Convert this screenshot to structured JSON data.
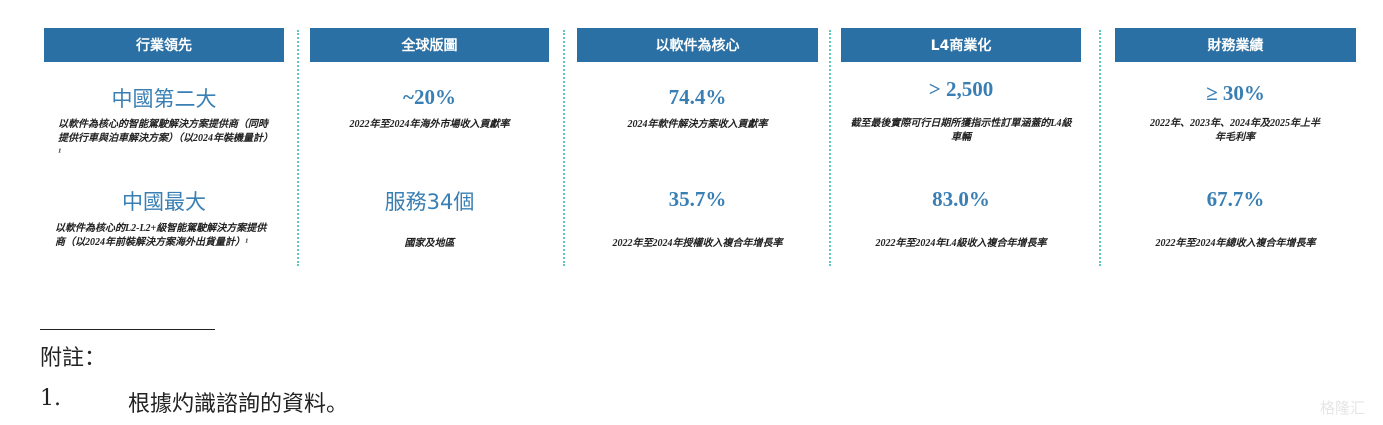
{
  "columns": [
    {
      "header": "行業領先",
      "value1": "中國第二大",
      "desc1": "以軟件為核心的智能駕駛解決方案提供商（同時提供行車與泊車解決方案）（以2024年裝機量計）¹",
      "value2": "中國最大",
      "desc2": "以軟件為核心的L2-L2+級智能駕駛解決方案提供商（以2024年前裝解決方案海外出貨量計）¹"
    },
    {
      "header": "全球版圖",
      "value1": "~20%",
      "desc1": "2022年至2024年海外市場收入貢獻率",
      "value2": "服務34個",
      "desc2": "國家及地區"
    },
    {
      "header": "以軟件為核心",
      "value1": "74.4%",
      "desc1": "2024年軟件解決方案收入貢獻率",
      "value2": "35.7%",
      "desc2": "2022年至2024年授權收入複合年增長率"
    },
    {
      "header": "L4商業化",
      "value1": "> 2,500",
      "desc1": "截至最後實際可行日期所獲指示性訂單涵蓋的L4級車輛",
      "value2": "83.0%",
      "desc2": "2022年至2024年L4級收入複合年增長率"
    },
    {
      "header": "財務業績",
      "value1": "≥ 30%",
      "desc1": "2022年、2023年、2024年及2025年上半年毛利率",
      "value2": "67.7%",
      "desc2": "2022年至2024年總收入複合年增長率"
    }
  ],
  "footnote": {
    "title": "附註：",
    "number": "1.",
    "text": "根據灼識諮詢的資料。"
  },
  "watermark": "格隆汇",
  "colors": {
    "header_bg": "#2b70a4",
    "value": "#3a7fb4",
    "separator": "#5fc9c0"
  }
}
